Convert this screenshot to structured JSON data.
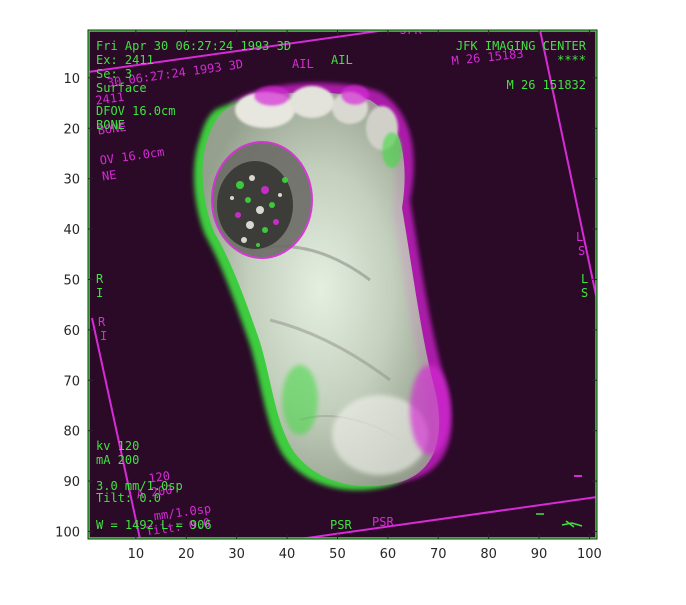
{
  "image_panel": {
    "x_ticks": [
      "10",
      "20",
      "30",
      "40",
      "50",
      "60",
      "70",
      "80",
      "90",
      "100"
    ],
    "y_ticks": [
      "10",
      "20",
      "30",
      "40",
      "50",
      "60",
      "70",
      "80",
      "90",
      "100"
    ],
    "colors": {
      "background": "#2b0a28",
      "green": "#3fe33f",
      "magenta": "#d62bd6",
      "axis": "#262626"
    }
  },
  "overlay_green": {
    "date": "Fri Apr 30 06:27:24 1993 3D",
    "exam": "Ex: 2411",
    "series": "Se: 3",
    "mode": "Surface",
    "dfov": "DFOV 16.0cm",
    "algorithm": "BONE",
    "institution": "JFK IMAGING CENTER",
    "stars": "****",
    "patient": "M 26   151832",
    "orient_top": "AIL",
    "orient_left_1": "R",
    "orient_left_2": "I",
    "orient_right_1": "L",
    "orient_right_2": "S",
    "kv": "kv 120",
    "ma": "mA 200",
    "thickness": "3.0 mm/1.0sp",
    "tilt": "Tilt: 0.0",
    "window": "W = 1492 L = 906",
    "orient_bottom": "PSR"
  },
  "overlay_magenta": {
    "top_fragment": "JFK",
    "date": "30 06:27:24 1993 3D",
    "institution": "M 26  15183",
    "orient_top": "AIL",
    "exam": "2411",
    "algorithm": "BONE",
    "dfov": "OV 16.0cm",
    "ne": "NE",
    "orient_left_1": "R",
    "orient_left_2": "I",
    "orient_right_1": "L",
    "orient_right_2": "S",
    "kv": "120",
    "ma": "A 200",
    "thickness": "mm/1.0sp",
    "tilt": "Tilt: 0.0",
    "orient_bottom": "PSR"
  }
}
